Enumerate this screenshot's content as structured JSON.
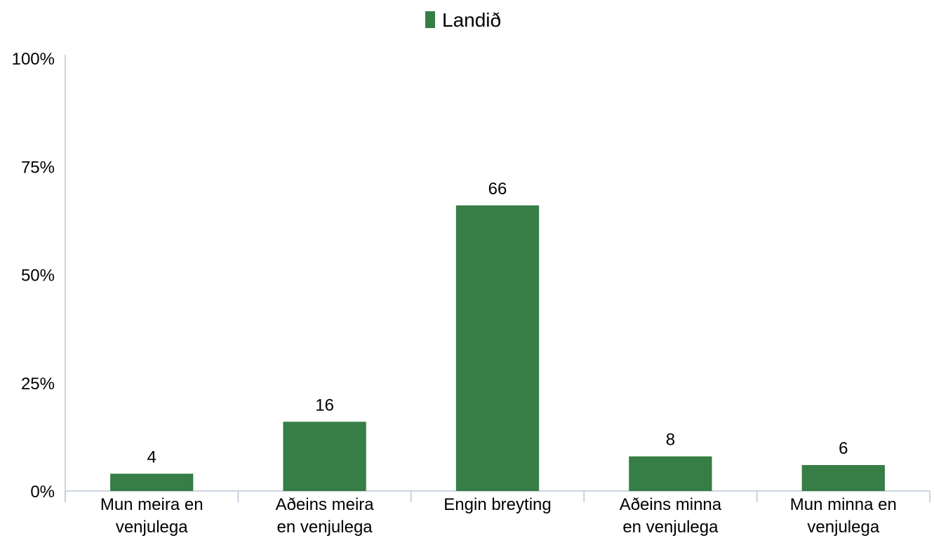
{
  "chart_data": {
    "type": "bar",
    "categories": [
      [
        "Mun meira en",
        "venjulega"
      ],
      [
        "Aðeins meira",
        "en venjulega"
      ],
      [
        "Engin breyting"
      ],
      [
        "Aðeins minna",
        "en venjulega"
      ],
      [
        "Mun minna en",
        "venjulega"
      ]
    ],
    "series": [
      {
        "name": "Landið",
        "values": [
          4,
          16,
          66,
          8,
          6
        ],
        "color": "#367e45"
      }
    ],
    "data_labels": [
      "4",
      "16",
      "66",
      "8",
      "6"
    ],
    "y_ticks": [
      {
        "value": 0,
        "label": "0%"
      },
      {
        "value": 25,
        "label": "25%"
      },
      {
        "value": 50,
        "label": "50%"
      },
      {
        "value": 75,
        "label": "75%"
      },
      {
        "value": 100,
        "label": "100%"
      }
    ],
    "ylim": [
      0,
      100
    ],
    "grid": false,
    "legend_position": "top-center"
  }
}
